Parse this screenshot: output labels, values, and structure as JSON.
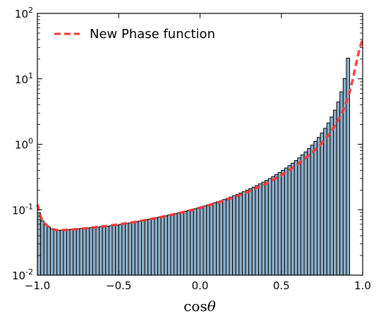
{
  "chart_data": {
    "type": "bar",
    "title": "",
    "xlabel": "cos",
    "xlabel_symbol": "θ",
    "ylabel": "",
    "yscale": "log",
    "xlim": [
      -1.0,
      1.0
    ],
    "ylim": [
      0.01,
      100
    ],
    "grid": false,
    "legend_position": "top-left",
    "x_ticks": [
      {
        "value": -1.0,
        "label": "−1.0"
      },
      {
        "value": -0.5,
        "label": "−0.5"
      },
      {
        "value": 0.0,
        "label": "0.0"
      },
      {
        "value": 0.5,
        "label": "0.5"
      },
      {
        "value": 1.0,
        "label": "1.0"
      }
    ],
    "y_ticks": [
      {
        "value": 0.01,
        "base": "10",
        "exp": "-2"
      },
      {
        "value": 0.1,
        "base": "10",
        "exp": "-1"
      },
      {
        "value": 1,
        "base": "10",
        "exp": "0"
      },
      {
        "value": 10,
        "base": "10",
        "exp": "1"
      },
      {
        "value": 100,
        "base": "10",
        "exp": "2"
      }
    ],
    "histogram": {
      "bin_width": 0.02,
      "bin_start": -1.0,
      "color": "#8fb2cc",
      "edge_color": "#000000",
      "counts": [
        0.0894,
        0.0676,
        0.0593,
        0.0541,
        0.0508,
        0.049,
        0.0485,
        0.0488,
        0.0492,
        0.0497,
        0.0501,
        0.0506,
        0.0511,
        0.0516,
        0.0521,
        0.0526,
        0.0531,
        0.0537,
        0.0542,
        0.0548,
        0.0553,
        0.0559,
        0.0566,
        0.0574,
        0.0583,
        0.0593,
        0.0604,
        0.0616,
        0.0629,
        0.0642,
        0.0657,
        0.0671,
        0.0687,
        0.0702,
        0.0718,
        0.0735,
        0.0752,
        0.077,
        0.0789,
        0.0808,
        0.0828,
        0.0849,
        0.0872,
        0.0895,
        0.092,
        0.0946,
        0.0974,
        0.1003,
        0.1035,
        0.1068,
        0.1104,
        0.1142,
        0.1183,
        0.1226,
        0.1273,
        0.1323,
        0.1376,
        0.1434,
        0.1496,
        0.1562,
        0.1634,
        0.1712,
        0.1796,
        0.1887,
        0.1986,
        0.2094,
        0.2212,
        0.2341,
        0.2483,
        0.2638,
        0.281,
        0.3,
        0.3211,
        0.3446,
        0.3708,
        0.4003,
        0.4336,
        0.4713,
        0.5143,
        0.5637,
        0.6208,
        0.6873,
        0.7656,
        0.8586,
        0.9703,
        1.1062,
        1.274,
        1.4852,
        1.7571,
        2.1171,
        2.6128,
        3.3295,
        4.4327,
        6.3248,
        10.116,
        20.7
      ]
    },
    "series": [
      {
        "name": "New Phase function",
        "color": "#ff3333",
        "style": "dashed",
        "x": [
          -1.0,
          -0.98,
          -0.96,
          -0.94,
          -0.92,
          -0.9,
          -0.88,
          -0.86,
          -0.84,
          -0.82,
          -0.8,
          -0.7,
          -0.6,
          -0.5,
          -0.4,
          -0.3,
          -0.2,
          -0.1,
          0.0,
          0.1,
          0.2,
          0.3,
          0.4,
          0.5,
          0.6,
          0.7,
          0.75,
          0.8,
          0.85,
          0.88,
          0.9,
          0.92,
          0.94,
          0.95,
          0.96,
          0.97,
          0.975,
          0.98,
          0.985,
          0.99,
          0.995,
          1.0
        ],
        "y": [
          0.12,
          0.078,
          0.064,
          0.057,
          0.052,
          0.05,
          0.049,
          0.0488,
          0.049,
          0.0492,
          0.0495,
          0.052,
          0.0555,
          0.0598,
          0.065,
          0.072,
          0.081,
          0.092,
          0.107,
          0.126,
          0.153,
          0.19,
          0.246,
          0.336,
          0.49,
          0.79,
          1.05,
          1.48,
          2.33,
          3.3,
          4.4,
          6.3,
          10.0,
          13.0,
          17.0,
          22.0,
          25.0,
          28.0,
          31.0,
          34.0,
          37.0,
          40.0
        ]
      }
    ]
  }
}
